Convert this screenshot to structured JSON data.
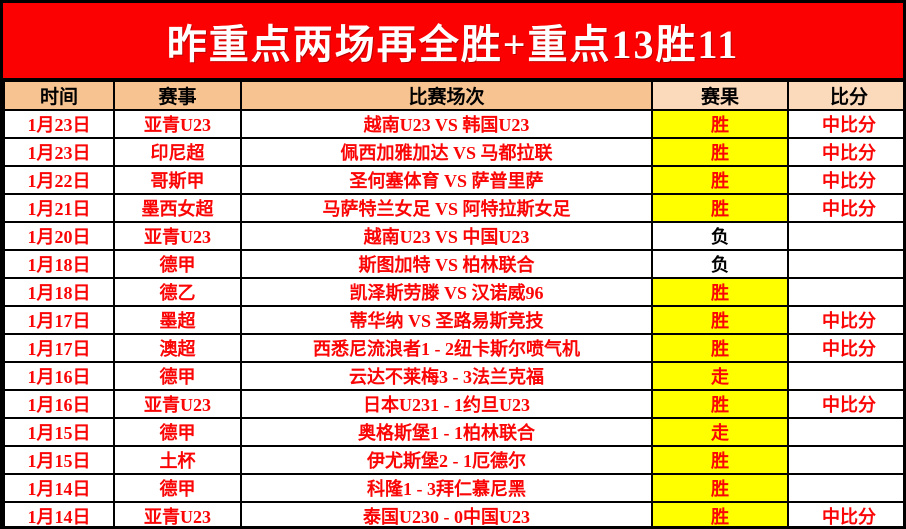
{
  "banner": {
    "title": "昨重点两场再全胜+重点13胜11"
  },
  "colors": {
    "banner_bg": "#fb0101",
    "banner_text": "#ffffff",
    "header_bg_dark": "#f7c491",
    "header_bg_light": "#fbd9bb",
    "body_text_red": "#fa0606",
    "win_highlight": "#ffff00",
    "lose_text": "#000000",
    "grid_border": "#000000"
  },
  "table": {
    "columns": [
      "时间",
      "赛事",
      "比赛场次",
      "赛果",
      "比分"
    ],
    "rows": [
      {
        "date": "1月23日",
        "league": "亚青U23",
        "match": "越南U23 VS 韩国U23",
        "result": "胜",
        "highlight": true,
        "score": "中比分"
      },
      {
        "date": "1月23日",
        "league": "印尼超",
        "match": "佩西加雅加达 VS 马都拉联",
        "result": "胜",
        "highlight": true,
        "score": "中比分"
      },
      {
        "date": "1月22日",
        "league": "哥斯甲",
        "match": "圣何塞体育 VS 萨普里萨",
        "result": "胜",
        "highlight": true,
        "score": "中比分"
      },
      {
        "date": "1月21日",
        "league": "墨西女超",
        "match": "马萨特兰女足 VS 阿特拉斯女足",
        "result": "胜",
        "highlight": true,
        "score": "中比分"
      },
      {
        "date": "1月20日",
        "league": "亚青U23",
        "match": "越南U23 VS 中国U23",
        "result": "负",
        "highlight": false,
        "score": ""
      },
      {
        "date": "1月18日",
        "league": "德甲",
        "match": "斯图加特 VS 柏林联合",
        "result": "负",
        "highlight": false,
        "score": ""
      },
      {
        "date": "1月18日",
        "league": "德乙",
        "match": "凯泽斯劳滕 VS 汉诺威96",
        "result": "胜",
        "highlight": true,
        "score": ""
      },
      {
        "date": "1月17日",
        "league": "墨超",
        "match": "蒂华纳 VS 圣路易斯竞技",
        "result": "胜",
        "highlight": true,
        "score": "中比分"
      },
      {
        "date": "1月17日",
        "league": "澳超",
        "match": "西悉尼流浪者1 - 2纽卡斯尔喷气机",
        "result": "胜",
        "highlight": true,
        "score": "中比分"
      },
      {
        "date": "1月16日",
        "league": "德甲",
        "match": "云达不莱梅3 - 3法兰克福",
        "result": "走",
        "highlight": true,
        "score": ""
      },
      {
        "date": "1月16日",
        "league": "亚青U23",
        "match": "日本U231 - 1约旦U23",
        "result": "胜",
        "highlight": true,
        "score": "中比分"
      },
      {
        "date": "1月15日",
        "league": "德甲",
        "match": "奥格斯堡1 - 1柏林联合",
        "result": "走",
        "highlight": true,
        "score": ""
      },
      {
        "date": "1月15日",
        "league": "土杯",
        "match": "伊尤斯堡2 - 1厄德尔",
        "result": "胜",
        "highlight": true,
        "score": ""
      },
      {
        "date": "1月14日",
        "league": "德甲",
        "match": "科隆1 - 3拜仁慕尼黑",
        "result": "胜",
        "highlight": true,
        "score": ""
      },
      {
        "date": "1月14日",
        "league": "亚青U23",
        "match": "泰国U230 - 0中国U23",
        "result": "胜",
        "highlight": true,
        "score": "中比分"
      }
    ]
  }
}
